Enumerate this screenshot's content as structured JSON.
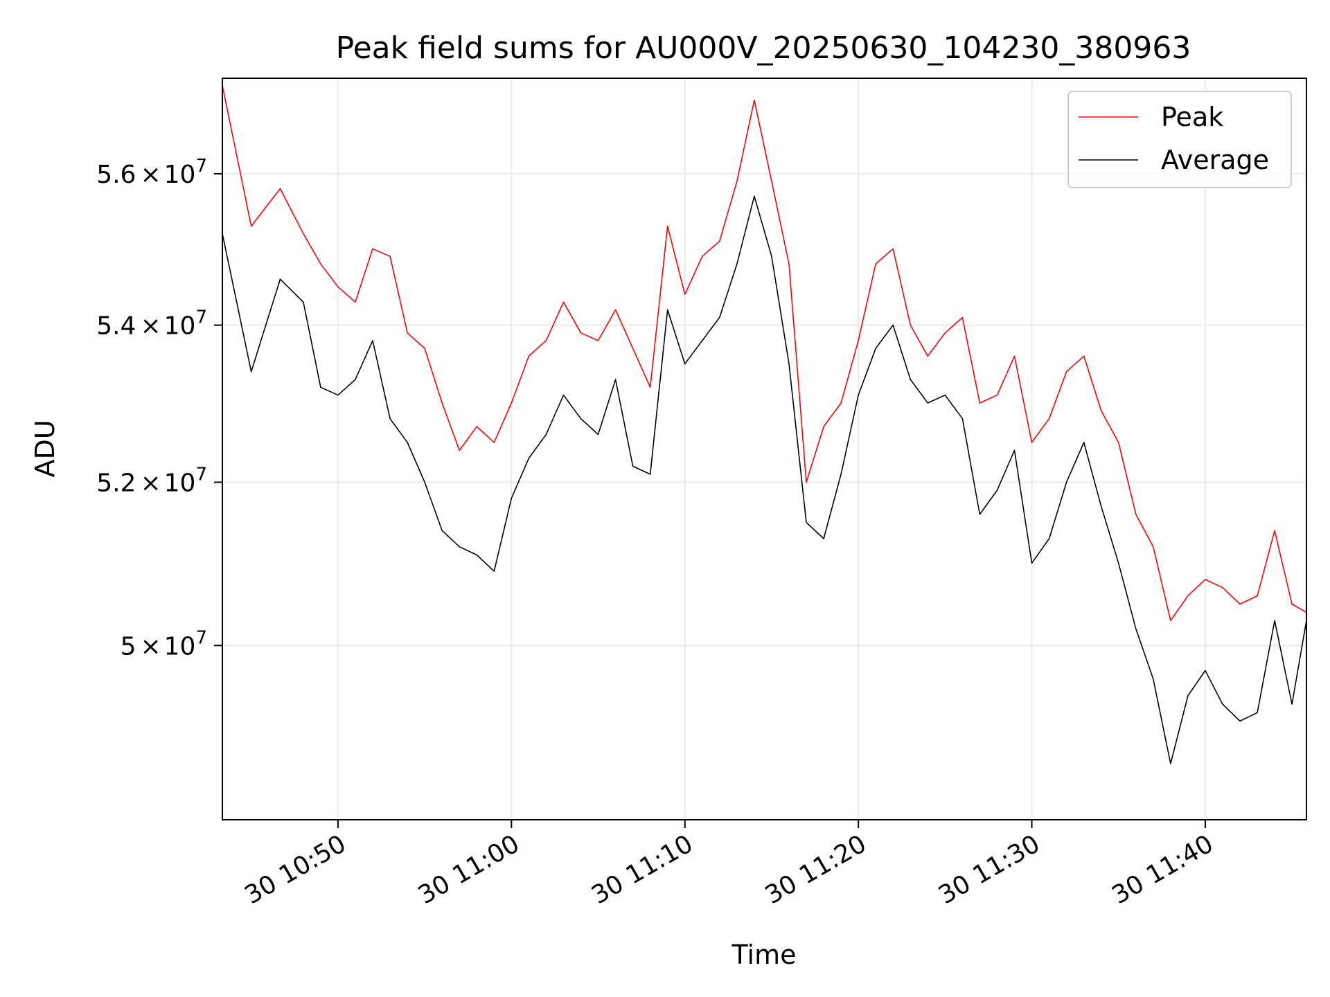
{
  "chart_data": {
    "type": "line",
    "title": "Peak field sums for AU000V_20250630_104230_380963",
    "xlabel": "Time",
    "ylabel": "ADU",
    "x_axis": {
      "type": "time",
      "range": [
        "2025-06-30 10:43:20",
        "2025-06-30 11:45:50"
      ],
      "tick_values": [
        "2025-06-30 10:50",
        "2025-06-30 11:00",
        "2025-06-30 11:10",
        "2025-06-30 11:20",
        "2025-06-30 11:30",
        "2025-06-30 11:40"
      ],
      "tick_labels": [
        "30 10:50",
        "30 11:00",
        "30 11:10",
        "30 11:20",
        "30 11:30",
        "30 11:40"
      ]
    },
    "y_axis": {
      "scale": "log",
      "range": [
        47950000,
        57300000
      ],
      "ticks": [
        {
          "value": 50000000,
          "mantissa": "5",
          "exponent": "7"
        },
        {
          "value": 52000000,
          "mantissa": "5.2",
          "exponent": "7"
        },
        {
          "value": 54000000,
          "mantissa": "5.4",
          "exponent": "7"
        },
        {
          "value": 56000000,
          "mantissa": "5.6",
          "exponent": "7"
        }
      ],
      "times_sign": "×",
      "base": "10"
    },
    "grid": true,
    "legend": {
      "placement": "top-right",
      "entries": [
        "Peak",
        "Average"
      ]
    },
    "series": [
      {
        "name": "Peak",
        "color": "#ff0000",
        "x": [
          "2025-06-30 10:43:20",
          "2025-06-30 10:45:00",
          "2025-06-30 10:46:40",
          "2025-06-30 10:48:00",
          "2025-06-30 10:49:00",
          "2025-06-30 10:50:00",
          "2025-06-30 10:51:00",
          "2025-06-30 10:52:00",
          "2025-06-30 10:53:00",
          "2025-06-30 10:54:00",
          "2025-06-30 10:55:00",
          "2025-06-30 10:56:00",
          "2025-06-30 10:57:00",
          "2025-06-30 10:58:00",
          "2025-06-30 10:59:00",
          "2025-06-30 11:00:00",
          "2025-06-30 11:01:00",
          "2025-06-30 11:02:00",
          "2025-06-30 11:03:00",
          "2025-06-30 11:04:00",
          "2025-06-30 11:05:00",
          "2025-06-30 11:06:00",
          "2025-06-30 11:07:00",
          "2025-06-30 11:08:00",
          "2025-06-30 11:09:00",
          "2025-06-30 11:10:00",
          "2025-06-30 11:11:00",
          "2025-06-30 11:12:00",
          "2025-06-30 11:13:00",
          "2025-06-30 11:14:00",
          "2025-06-30 11:15:00",
          "2025-06-30 11:16:00",
          "2025-06-30 11:17:00",
          "2025-06-30 11:18:00",
          "2025-06-30 11:19:00",
          "2025-06-30 11:20:00",
          "2025-06-30 11:21:00",
          "2025-06-30 11:22:00",
          "2025-06-30 11:23:00",
          "2025-06-30 11:24:00",
          "2025-06-30 11:25:00",
          "2025-06-30 11:26:00",
          "2025-06-30 11:27:00",
          "2025-06-30 11:28:00",
          "2025-06-30 11:29:00",
          "2025-06-30 11:30:00",
          "2025-06-30 11:31:00",
          "2025-06-30 11:32:00",
          "2025-06-30 11:33:00",
          "2025-06-30 11:34:00",
          "2025-06-30 11:35:00",
          "2025-06-30 11:36:00",
          "2025-06-30 11:37:00",
          "2025-06-30 11:38:00",
          "2025-06-30 11:39:00",
          "2025-06-30 11:40:00",
          "2025-06-30 11:41:00",
          "2025-06-30 11:42:00",
          "2025-06-30 11:43:00",
          "2025-06-30 11:44:00",
          "2025-06-30 11:45:00",
          "2025-06-30 11:45:50"
        ],
        "y": [
          57200000,
          55300000,
          55800000,
          55200000,
          54800000,
          54500000,
          54300000,
          55000000,
          54900000,
          53900000,
          53700000,
          53000000,
          52400000,
          52700000,
          52500000,
          53000000,
          53600000,
          53800000,
          54300000,
          53900000,
          53800000,
          54200000,
          53700000,
          53200000,
          55300000,
          54400000,
          54900000,
          55100000,
          55900000,
          57000000,
          55900000,
          54800000,
          52000000,
          52700000,
          53000000,
          53800000,
          54800000,
          55000000,
          54000000,
          53600000,
          53900000,
          54100000,
          53000000,
          53100000,
          53600000,
          52500000,
          52800000,
          53400000,
          53600000,
          52900000,
          52500000,
          51600000,
          51200000,
          50300000,
          50600000,
          50800000,
          50700000,
          50500000,
          50600000,
          51400000,
          50500000,
          50400000
        ]
      },
      {
        "name": "Average",
        "color": "#000000",
        "x": [
          "2025-06-30 10:43:20",
          "2025-06-30 10:45:00",
          "2025-06-30 10:46:40",
          "2025-06-30 10:48:00",
          "2025-06-30 10:49:00",
          "2025-06-30 10:50:00",
          "2025-06-30 10:51:00",
          "2025-06-30 10:52:00",
          "2025-06-30 10:53:00",
          "2025-06-30 10:54:00",
          "2025-06-30 10:55:00",
          "2025-06-30 10:56:00",
          "2025-06-30 10:57:00",
          "2025-06-30 10:58:00",
          "2025-06-30 10:59:00",
          "2025-06-30 11:00:00",
          "2025-06-30 11:01:00",
          "2025-06-30 11:02:00",
          "2025-06-30 11:03:00",
          "2025-06-30 11:04:00",
          "2025-06-30 11:05:00",
          "2025-06-30 11:06:00",
          "2025-06-30 11:07:00",
          "2025-06-30 11:08:00",
          "2025-06-30 11:09:00",
          "2025-06-30 11:10:00",
          "2025-06-30 11:11:00",
          "2025-06-30 11:12:00",
          "2025-06-30 11:13:00",
          "2025-06-30 11:14:00",
          "2025-06-30 11:15:00",
          "2025-06-30 11:16:00",
          "2025-06-30 11:17:00",
          "2025-06-30 11:18:00",
          "2025-06-30 11:19:00",
          "2025-06-30 11:20:00",
          "2025-06-30 11:21:00",
          "2025-06-30 11:22:00",
          "2025-06-30 11:23:00",
          "2025-06-30 11:24:00",
          "2025-06-30 11:25:00",
          "2025-06-30 11:26:00",
          "2025-06-30 11:27:00",
          "2025-06-30 11:28:00",
          "2025-06-30 11:29:00",
          "2025-06-30 11:30:00",
          "2025-06-30 11:31:00",
          "2025-06-30 11:32:00",
          "2025-06-30 11:33:00",
          "2025-06-30 11:34:00",
          "2025-06-30 11:35:00",
          "2025-06-30 11:36:00",
          "2025-06-30 11:37:00",
          "2025-06-30 11:38:00",
          "2025-06-30 11:39:00",
          "2025-06-30 11:40:00",
          "2025-06-30 11:41:00",
          "2025-06-30 11:42:00",
          "2025-06-30 11:43:00",
          "2025-06-30 11:44:00",
          "2025-06-30 11:45:00",
          "2025-06-30 11:45:50"
        ],
        "y": [
          55200000,
          53400000,
          54600000,
          54300000,
          53200000,
          53100000,
          53300000,
          53800000,
          52800000,
          52500000,
          52000000,
          51400000,
          51200000,
          51100000,
          50900000,
          51800000,
          52300000,
          52600000,
          53100000,
          52800000,
          52600000,
          53300000,
          52200000,
          52100000,
          54200000,
          53500000,
          53800000,
          54100000,
          54800000,
          55700000,
          54900000,
          53500000,
          51500000,
          51300000,
          52100000,
          53100000,
          53700000,
          54000000,
          53300000,
          53000000,
          53100000,
          52800000,
          51600000,
          51900000,
          52400000,
          51000000,
          51300000,
          52000000,
          52500000,
          51700000,
          51000000,
          50200000,
          49600000,
          48600000,
          49400000,
          49700000,
          49300000,
          49100000,
          49200000,
          50300000,
          49300000,
          50300000
        ]
      }
    ]
  }
}
